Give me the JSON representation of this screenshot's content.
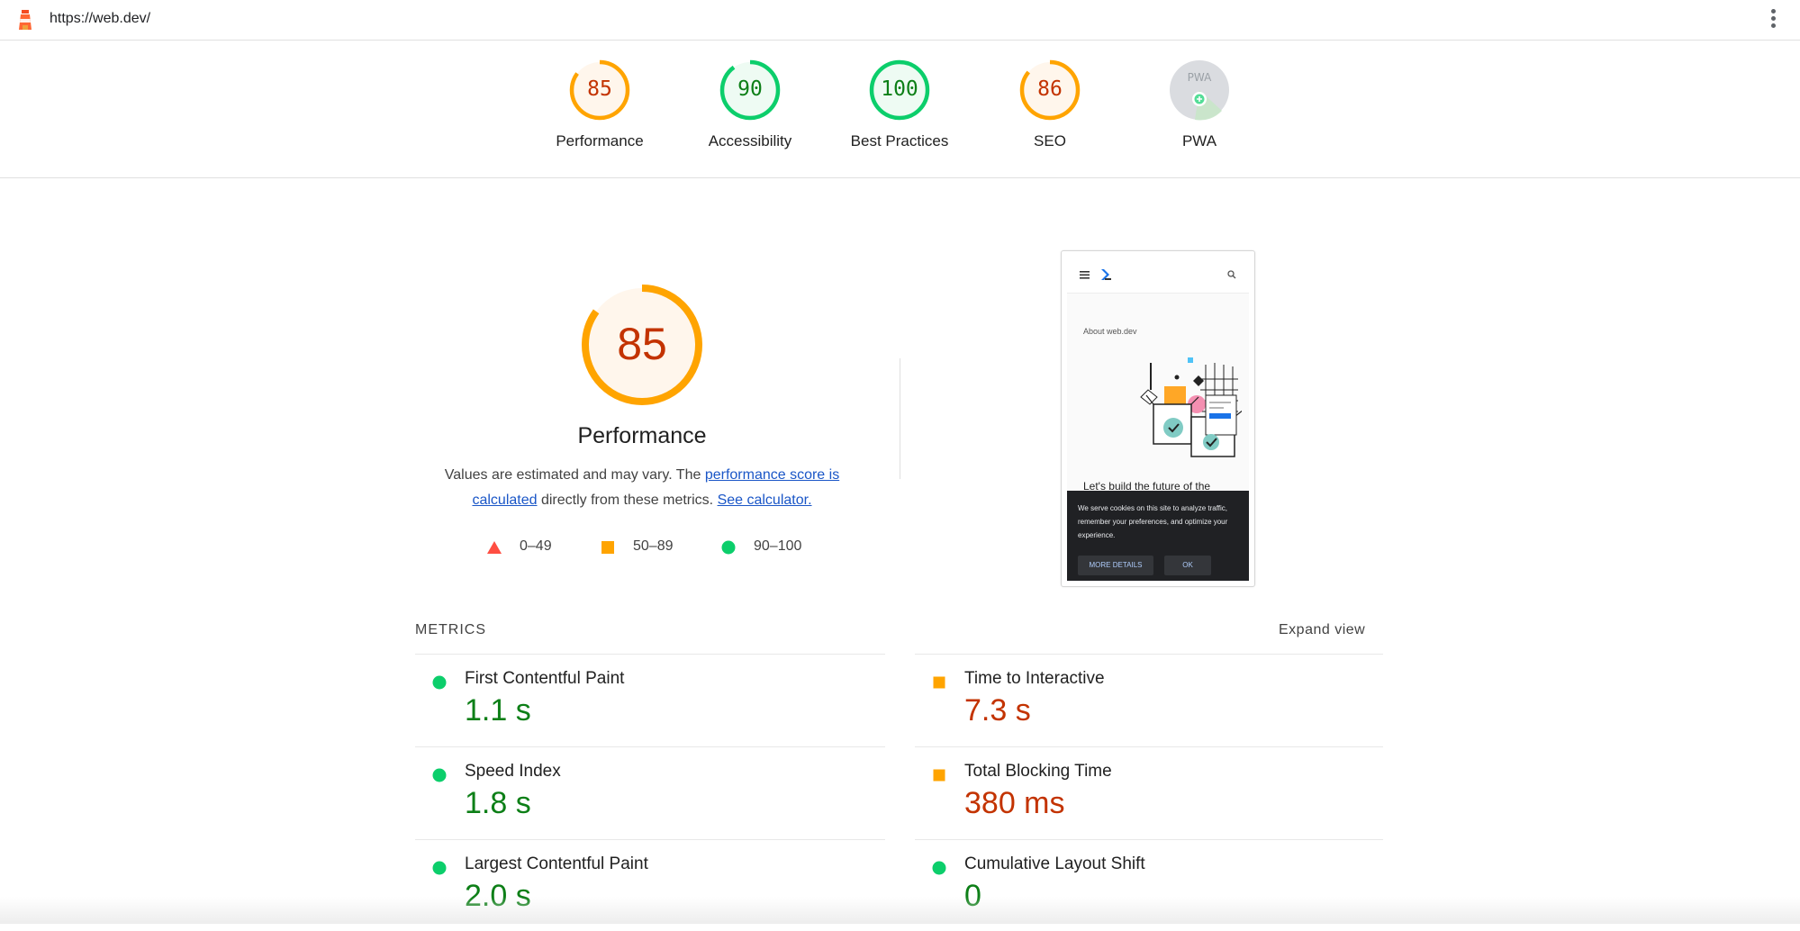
{
  "address_bar": {
    "url": "https://web.dev/"
  },
  "colors": {
    "pass": "#0cce6b",
    "average": "#ffa400",
    "fail": "#ff4e42",
    "pass_text": "#0d7f17",
    "average_text": "#c33300"
  },
  "score_strip": [
    {
      "score": "85",
      "label": "Performance",
      "level": 0.85,
      "rating": "average"
    },
    {
      "score": "90",
      "label": "Accessibility",
      "level": 0.9,
      "rating": "pass"
    },
    {
      "score": "100",
      "label": "Best Practices",
      "level": 1.0,
      "rating": "pass"
    },
    {
      "score": "86",
      "label": "SEO",
      "level": 0.86,
      "rating": "average"
    },
    {
      "score": "",
      "label": "PWA",
      "badge_text": "PWA"
    }
  ],
  "performance": {
    "score": "85",
    "title": "Performance",
    "desc_prefix": "Values are estimated and may vary. The ",
    "desc_link1": "performance score is calculated",
    "desc_middle": " directly from these metrics. ",
    "desc_link2": "See calculator.",
    "legend": [
      {
        "range": "0–49",
        "shape": "triangle-icon"
      },
      {
        "range": "50–89",
        "shape": "square-icon"
      },
      {
        "range": "90–100",
        "shape": "circle-icon"
      }
    ]
  },
  "screenshot": {
    "about": "About web.dev",
    "heading": "Let's build the future of the",
    "cookie_text": "We serve cookies on this site to analyze traffic, remember your preferences, and optimize your experience.",
    "more_details": "MORE DETAILS",
    "ok": "OK"
  },
  "metrics": {
    "heading": "METRICS",
    "expand_label": "Expand view",
    "items": [
      {
        "label": "First Contentful Paint",
        "value": "1.1 s",
        "rating": "pass"
      },
      {
        "label": "Time to Interactive",
        "value": "7.3 s",
        "rating": "average"
      },
      {
        "label": "Speed Index",
        "value": "1.8 s",
        "rating": "pass"
      },
      {
        "label": "Total Blocking Time",
        "value": "380 ms",
        "rating": "average"
      },
      {
        "label": "Largest Contentful Paint",
        "value": "2.0 s",
        "rating": "pass"
      },
      {
        "label": "Cumulative Layout Shift",
        "value": "0",
        "rating": "pass"
      }
    ]
  }
}
